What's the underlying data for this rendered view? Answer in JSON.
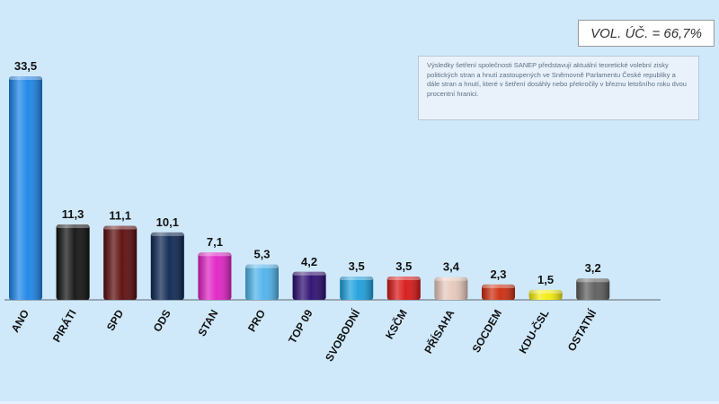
{
  "turnout_label": "VOL. ÚČ. = 66,7%",
  "note": "Výsledky šetření společnosti SANEP představují aktuální teoretické volební zisky politických stran a hnutí zastoupených ve Sněmovně Parlamentu České republiky a dále stran a hnutí, které v šetření dosáhly nebo překročily v březnu letošního roku dvou procentní hranici.",
  "chart_data": {
    "type": "bar",
    "categories": [
      "ANO",
      "PIRÁTI",
      "SPD",
      "ODS",
      "STAN",
      "PRO",
      "TOP 09",
      "SVOBODNÍ",
      "KSČM",
      "PŘÍSAHA",
      "SOCDEM",
      "KDU-ČSL",
      "OSTATNÍ"
    ],
    "values": [
      33.5,
      11.3,
      11.1,
      10.1,
      7.1,
      5.3,
      4.2,
      3.5,
      3.5,
      3.4,
      2.3,
      1.5,
      3.2
    ],
    "value_labels": [
      "33,5",
      "11,3",
      "11,1",
      "10,1",
      "7,1",
      "5,3",
      "4,2",
      "3,5",
      "3,5",
      "3,4",
      "2,3",
      "1,5",
      "3,2"
    ],
    "colors": [
      "#1b84e8",
      "#101010",
      "#5a0a0a",
      "#0c2550",
      "#e021c4",
      "#4db3ea",
      "#2a0a6e",
      "#1c9fdc",
      "#d81515",
      "#e6c8bb",
      "#cc2a0c",
      "#f2ec0a",
      "#5c5c5c"
    ],
    "title": "",
    "xlabel": "",
    "ylabel": "",
    "ylim": [
      0,
      33.5
    ],
    "grid": false,
    "legend": "none"
  }
}
